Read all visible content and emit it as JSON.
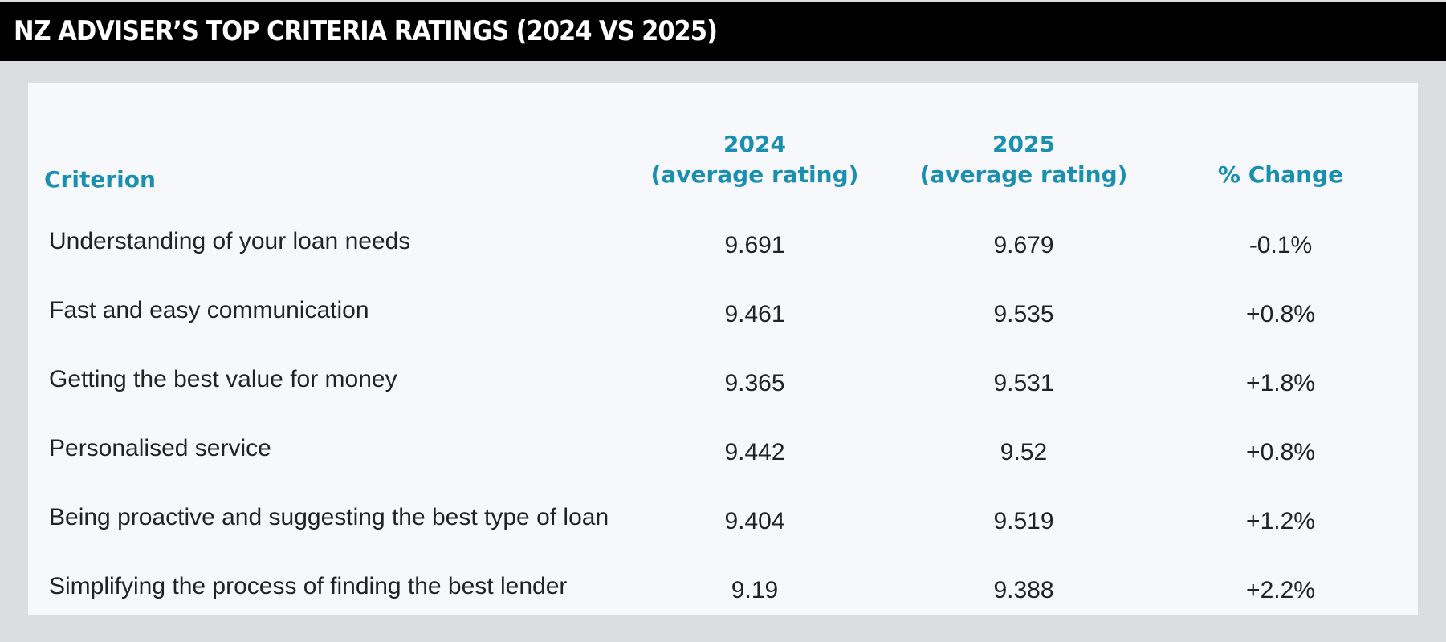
{
  "title": "NZ ADVISER’S TOP CRITERIA RATINGS (2024 VS 2025)",
  "colors": {
    "header_bar": "#000000",
    "accent": "#1a8fb0",
    "panel": "#f7f8fc",
    "background": "#dcdde0"
  },
  "chart_data": {
    "type": "table",
    "title": "NZ ADVISER’S TOP CRITERIA RATINGS (2024 VS 2025)",
    "headers": {
      "criterion": "Criterion",
      "y2024_year": "2024",
      "y2024_sub": "(average rating)",
      "y2025_year": "2025",
      "y2025_sub": "(average rating)",
      "change": "% Change"
    },
    "rows": [
      {
        "criterion": "Understanding of your loan needs",
        "y2024": "9.691",
        "y2025": "9.679",
        "change": "-0.1%"
      },
      {
        "criterion": "Fast and easy communication",
        "y2024": "9.461",
        "y2025": "9.535",
        "change": "+0.8%"
      },
      {
        "criterion": "Getting the best value for money",
        "y2024": "9.365",
        "y2025": "9.531",
        "change": "+1.8%"
      },
      {
        "criterion": "Personalised service",
        "y2024": "9.442",
        "y2025": "9.52",
        "change": "+0.8%"
      },
      {
        "criterion": "Being proactive and suggesting the best type of loan",
        "y2024": "9.404",
        "y2025": "9.519",
        "change": "+1.2%"
      },
      {
        "criterion": "Simplifying the process of finding the best lender",
        "y2024": "9.19",
        "y2025": "9.388",
        "change": "+2.2%"
      }
    ]
  }
}
